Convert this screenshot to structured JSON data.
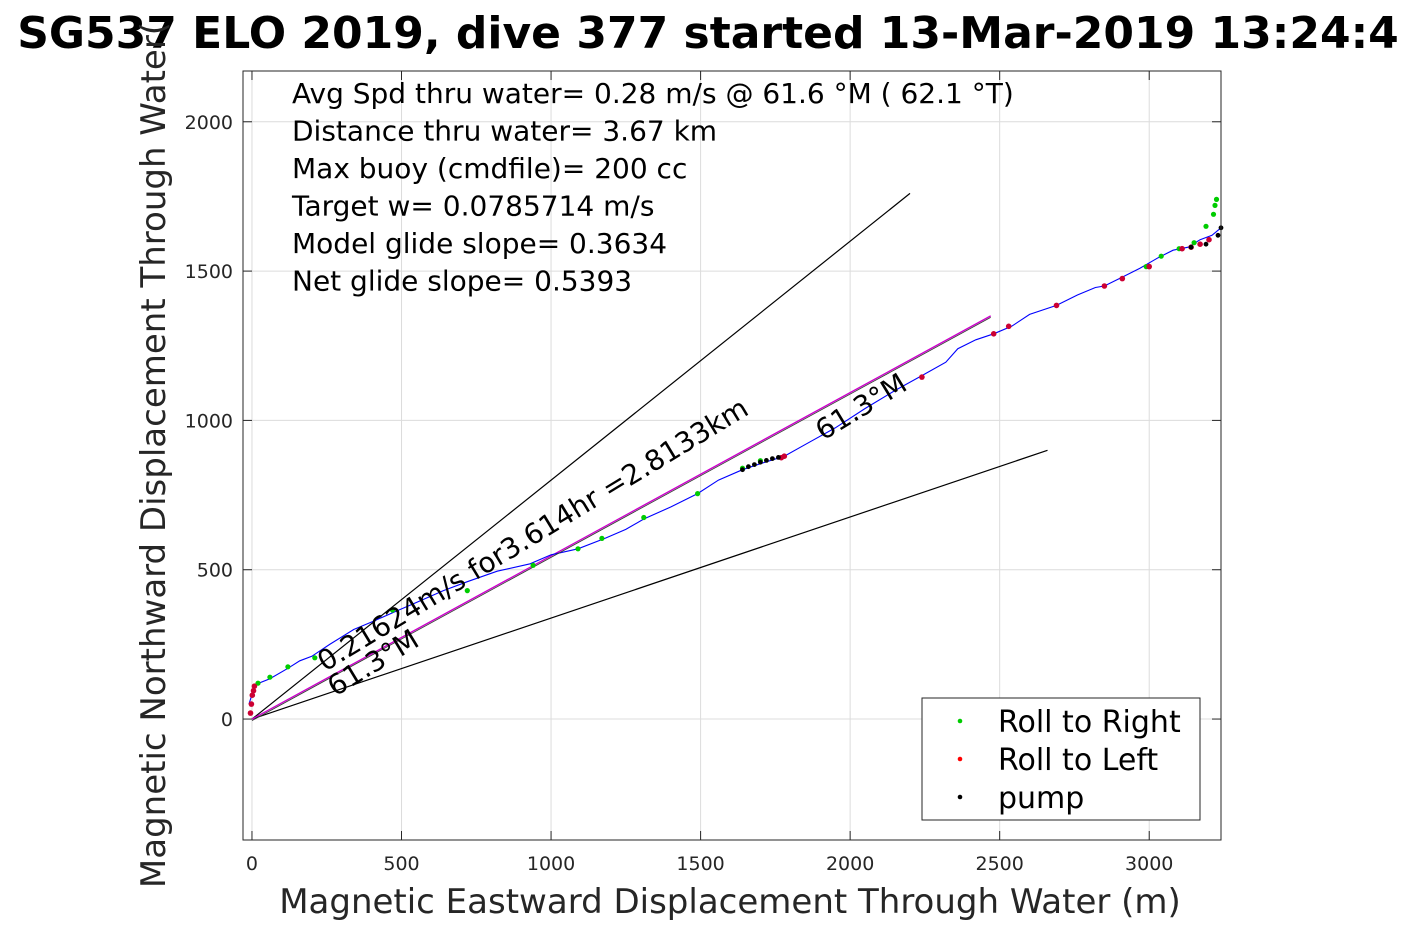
{
  "chart_data": {
    "type": "line",
    "title": "SG537 ELO 2019, dive 377 started 13-Mar-2019 13:24:4",
    "xlabel": "Magnetic Eastward Displacement Through Water (m)",
    "ylabel": "Magnetic Northward Displacement Through Water(",
    "xlim": [
      -30,
      3240
    ],
    "ylim": [
      -405,
      2170
    ],
    "xticks": [
      0,
      500,
      1000,
      1500,
      2000,
      2500,
      3000
    ],
    "yticks": [
      0,
      500,
      1000,
      1500,
      2000
    ],
    "grid": true,
    "legend_position": "bottom-right",
    "stats": [
      "Avg Spd thru water=  0.28 m/s @  61.6 °M ( 62.1 °T)",
      "Distance thru water=  3.67 km",
      "Max buoy (cmdfile)= 200 cc",
      "Target w= 0.0785714 m/s",
      "Model glide slope= 0.3634",
      "Net glide slope= 0.5393"
    ],
    "annotations": [
      "0.21624m/s for3.614hr =2.8133km",
      "61.3°M",
      "61.3°M"
    ],
    "colors": {
      "track": "#0000ff",
      "roll_right": "#00cc00",
      "roll_left": "#cc0033",
      "pump": "#000000",
      "heading_line": "#cc00cc",
      "reference_lines": "#000000"
    },
    "series": [
      {
        "name": "track",
        "x": [
          -10,
          10,
          60,
          120,
          160,
          200,
          260,
          340,
          400,
          480,
          560,
          640,
          720,
          820,
          930,
          1000,
          1090,
          1180,
          1250,
          1310,
          1400,
          1490,
          1560,
          1640,
          1700,
          1780,
          1860,
          1950,
          2050,
          2150,
          2240,
          2320,
          2360,
          2420,
          2480,
          2540,
          2600,
          2690,
          2760,
          2820,
          2850,
          2910,
          2970,
          3030,
          3080,
          3130,
          3170,
          3210,
          3240
        ],
        "y": [
          50,
          115,
          135,
          170,
          195,
          210,
          250,
          300,
          325,
          360,
          395,
          430,
          460,
          495,
          520,
          550,
          570,
          605,
          635,
          670,
          710,
          755,
          800,
          835,
          855,
          880,
          925,
          975,
          1040,
          1100,
          1150,
          1195,
          1240,
          1270,
          1290,
          1315,
          1355,
          1385,
          1420,
          1445,
          1450,
          1480,
          1510,
          1545,
          1570,
          1580,
          1605,
          1620,
          1645
        ]
      },
      {
        "name": "Roll to Right",
        "x": [
          20,
          60,
          120,
          210,
          470,
          720,
          940,
          1090,
          1170,
          1310,
          1490,
          1640,
          1700,
          2990,
          3040,
          3100,
          3150,
          3190,
          3215,
          3220,
          3225
        ],
        "y": [
          120,
          140,
          175,
          205,
          365,
          430,
          515,
          570,
          605,
          675,
          755,
          840,
          865,
          1515,
          1550,
          1575,
          1595,
          1650,
          1690,
          1720,
          1740
        ]
      },
      {
        "name": "Roll to Left",
        "x": [
          -5,
          -2,
          1,
          5,
          8,
          1770,
          1780,
          2240,
          2480,
          2530,
          2690,
          2850,
          2910,
          3000,
          3110,
          3140,
          3170,
          3200
        ],
        "y": [
          20,
          50,
          80,
          95,
          110,
          875,
          880,
          1145,
          1290,
          1315,
          1385,
          1450,
          1475,
          1515,
          1575,
          1580,
          1590,
          1605
        ]
      },
      {
        "name": "pump",
        "x": [
          1640,
          1660,
          1680,
          1700,
          1720,
          1740,
          1760,
          3140,
          3190,
          3230,
          3240
        ],
        "y": [
          835,
          845,
          852,
          860,
          866,
          872,
          876,
          1580,
          1590,
          1620,
          1645
        ]
      },
      {
        "name": "glide line",
        "x": [
          0,
          2200
        ],
        "y": [
          0,
          1760
        ]
      },
      {
        "name": "glide line lower",
        "x": [
          0,
          2660
        ],
        "y": [
          0,
          900
        ]
      },
      {
        "name": "heading line",
        "x": [
          0,
          2470
        ],
        "y": [
          0,
          1350
        ]
      }
    ],
    "legend": [
      {
        "label": "Roll to Right",
        "color": "#00cc00"
      },
      {
        "label": "Roll to Left",
        "color": "#ff0000"
      },
      {
        "label": "pump",
        "color": "#000000"
      }
    ]
  }
}
